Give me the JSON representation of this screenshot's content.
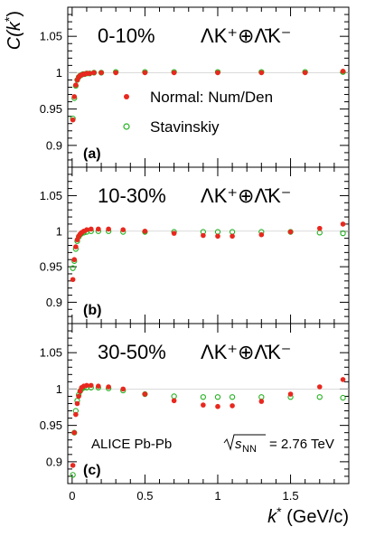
{
  "chart_data": {
    "type": "scatter",
    "xlabel_pre": "k",
    "xlabel_star": "*",
    "xlabel_post": " (GeV/c)",
    "ylabel_pre": "C(k",
    "ylabel_star": "*",
    "ylabel_post": ")",
    "xlim": [
      -0.03,
      1.9
    ],
    "x_ticks": [
      "0",
      "0.5",
      "1",
      "1.5"
    ],
    "y_ticks": [
      "0.9",
      "0.95",
      "1",
      "1.05"
    ],
    "legend": {
      "normal": "Normal: Num/Den",
      "stav": "Stavinskiy",
      "normal_color": "#e8281e",
      "stav_color": "#22b01e"
    },
    "annotation": {
      "text": "ALICE Pb-Pb",
      "energy": "= 2.76 TeV",
      "s": "s",
      "nn": "NN"
    },
    "panels": [
      {
        "tag": "(a)",
        "centrality": "0-10%",
        "reaction": "ΛK⁺⊕Λ̄K⁻",
        "ylim": [
          0.87,
          1.09
        ],
        "normal": {
          "x": [
            0.005,
            0.015,
            0.025,
            0.035,
            0.045,
            0.055,
            0.065,
            0.075,
            0.085,
            0.1,
            0.12,
            0.15,
            0.2,
            0.3,
            0.5,
            0.7,
            1.0,
            1.3,
            1.6,
            1.86
          ],
          "y": [
            0.935,
            0.967,
            0.983,
            0.99,
            0.994,
            0.996,
            0.997,
            0.998,
            0.998,
            0.999,
            0.999,
            1.0,
            1.0,
            1.0,
            1.0,
            1.0,
            1.0,
            1.0,
            1.0,
            1.002
          ]
        },
        "stav": {
          "x": [
            0.005,
            0.015,
            0.025,
            0.035,
            0.045,
            0.055,
            0.065,
            0.075,
            0.085,
            0.1,
            0.12,
            0.15,
            0.2,
            0.3,
            0.5,
            0.7,
            1.0,
            1.3,
            1.6,
            1.86
          ],
          "y": [
            0.937,
            0.965,
            0.982,
            0.99,
            0.994,
            0.996,
            0.997,
            0.998,
            0.998,
            0.999,
            0.999,
            1.0,
            1.0,
            1.001,
            1.001,
            1.001,
            1.001,
            1.001,
            1.001,
            1.001
          ]
        }
      },
      {
        "tag": "(b)",
        "centrality": "10-30%",
        "reaction": "ΛK⁺⊕Λ̄K⁻",
        "ylim": [
          0.87,
          1.09
        ],
        "normal": {
          "x": [
            0.005,
            0.015,
            0.025,
            0.035,
            0.045,
            0.055,
            0.065,
            0.08,
            0.1,
            0.13,
            0.18,
            0.25,
            0.35,
            0.5,
            0.7,
            0.9,
            1.0,
            1.1,
            1.3,
            1.5,
            1.7,
            1.86
          ],
          "y": [
            0.932,
            0.96,
            0.978,
            0.988,
            0.993,
            0.996,
            0.998,
            1.0,
            1.002,
            1.003,
            1.003,
            1.003,
            1.002,
            1.0,
            0.997,
            0.994,
            0.993,
            0.993,
            0.995,
            0.999,
            1.004,
            1.01
          ]
        },
        "stav": {
          "x": [
            0.005,
            0.015,
            0.025,
            0.035,
            0.045,
            0.055,
            0.065,
            0.08,
            0.1,
            0.13,
            0.18,
            0.25,
            0.35,
            0.5,
            0.7,
            0.9,
            1.0,
            1.1,
            1.3,
            1.5,
            1.7,
            1.86
          ],
          "y": [
            0.948,
            0.958,
            0.975,
            0.986,
            0.992,
            0.995,
            0.997,
            0.998,
            0.999,
            1.0,
            1.0,
            1.0,
            0.999,
            0.999,
            0.999,
            0.999,
            0.999,
            0.999,
            0.999,
            0.999,
            0.998,
            0.997
          ]
        }
      },
      {
        "tag": "(c)",
        "centrality": "30-50%",
        "reaction": "ΛK⁺⊕Λ̄K⁻",
        "ylim": [
          0.87,
          1.09
        ],
        "normal": {
          "x": [
            0.005,
            0.015,
            0.025,
            0.035,
            0.045,
            0.055,
            0.065,
            0.08,
            0.1,
            0.13,
            0.18,
            0.25,
            0.35,
            0.5,
            0.7,
            0.9,
            1.0,
            1.1,
            1.3,
            1.5,
            1.7,
            1.86
          ],
          "y": [
            0.895,
            0.94,
            0.965,
            0.98,
            0.99,
            0.997,
            1.002,
            1.004,
            1.005,
            1.005,
            1.004,
            1.003,
            1.0,
            0.993,
            0.984,
            0.978,
            0.976,
            0.977,
            0.983,
            0.993,
            1.003,
            1.013
          ]
        },
        "stav": {
          "x": [
            0.005,
            0.015,
            0.025,
            0.035,
            0.045,
            0.055,
            0.065,
            0.08,
            0.1,
            0.13,
            0.18,
            0.25,
            0.35,
            0.5,
            0.7,
            0.9,
            1.0,
            1.1,
            1.3,
            1.5,
            1.7,
            1.86
          ],
          "y": [
            0.882,
            0.94,
            0.97,
            0.984,
            0.992,
            0.997,
            1.0,
            1.002,
            1.002,
            1.002,
            1.002,
            1.001,
            0.998,
            0.993,
            0.99,
            0.989,
            0.989,
            0.989,
            0.989,
            0.989,
            0.989,
            0.988
          ]
        }
      }
    ]
  }
}
